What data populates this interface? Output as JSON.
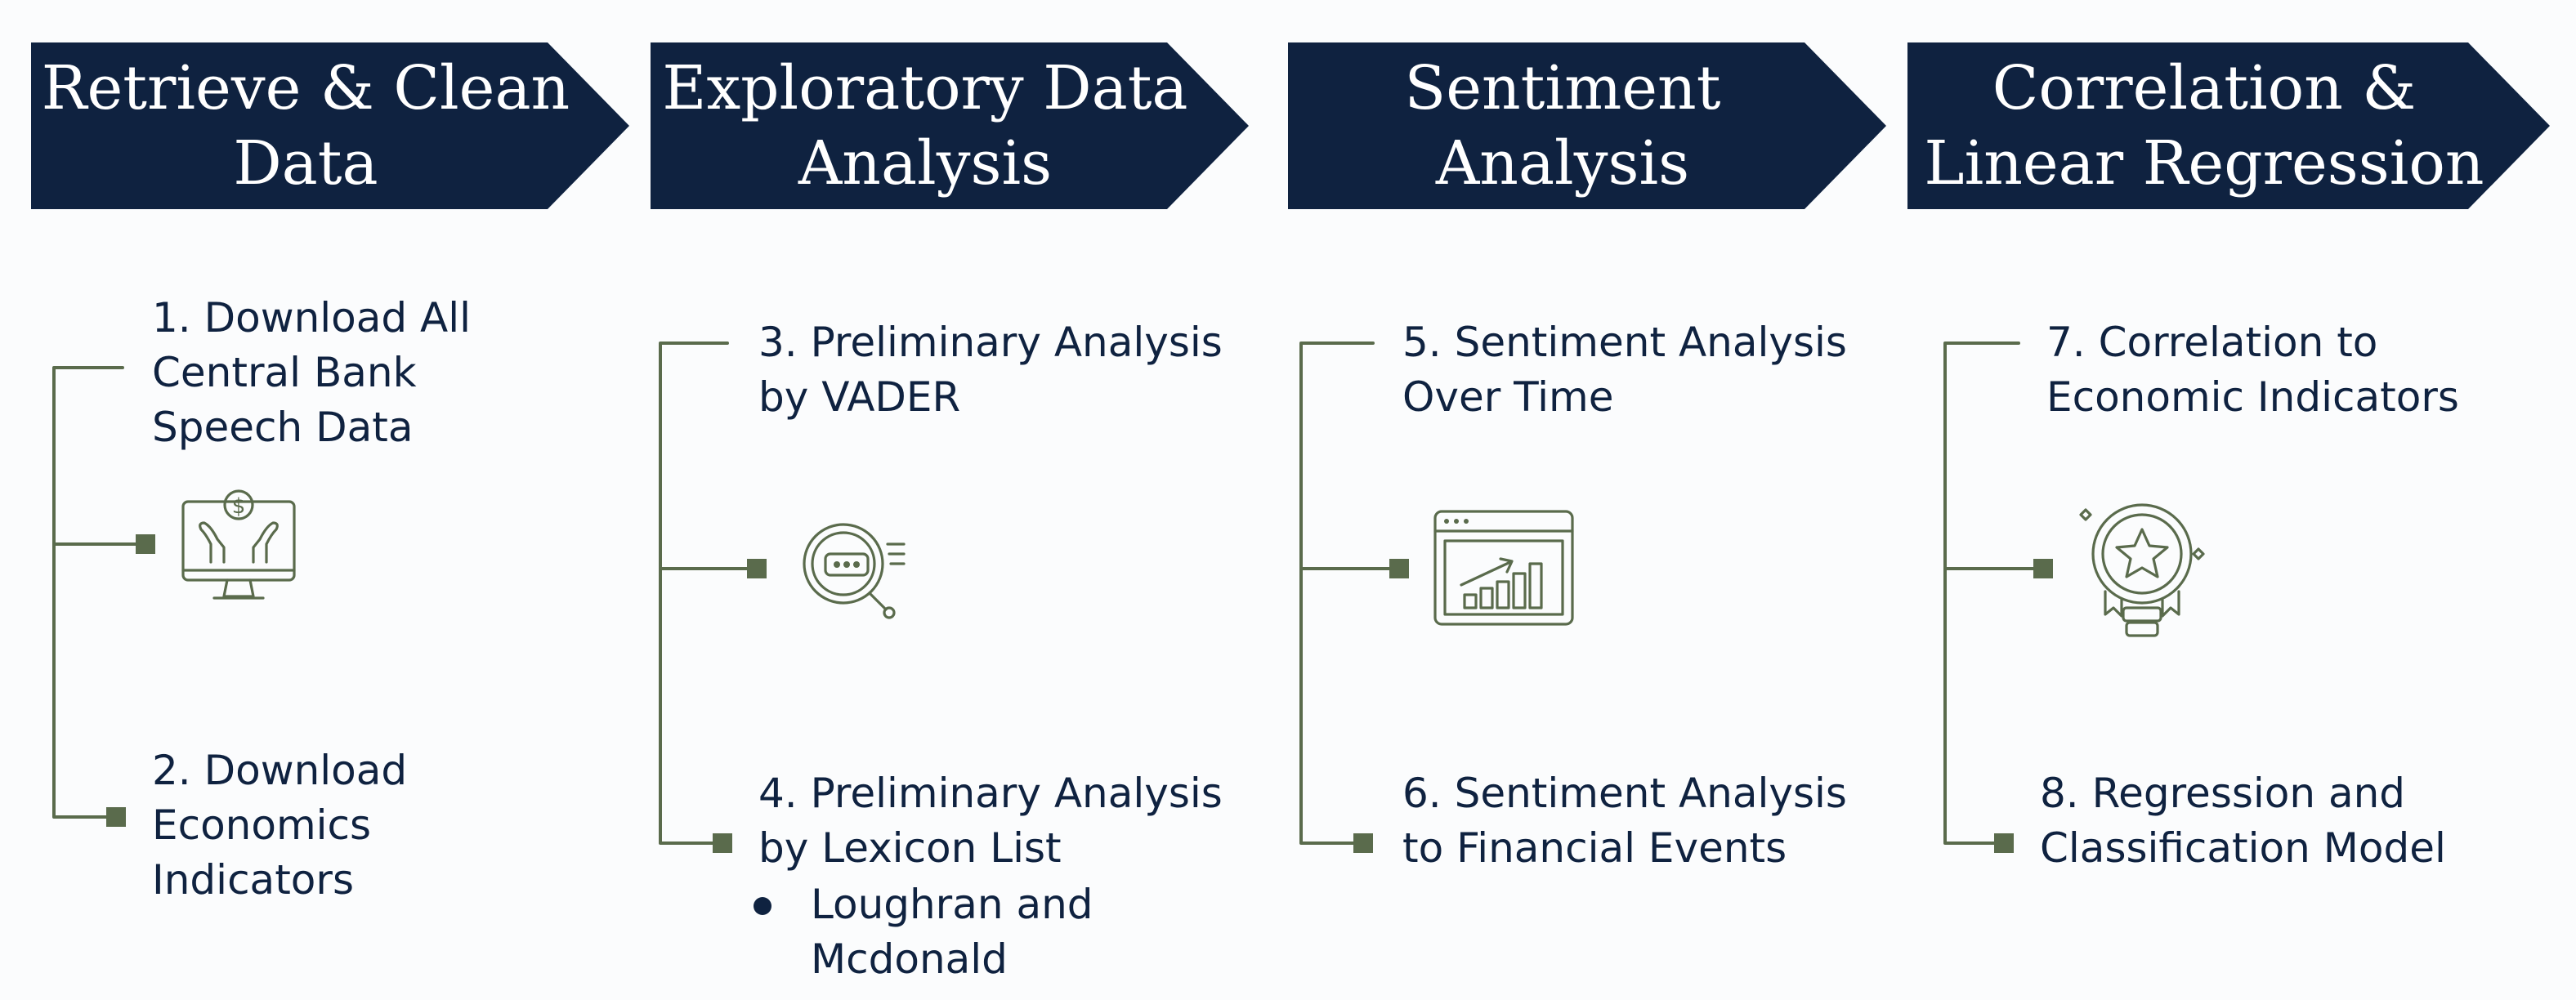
{
  "colors": {
    "header_bg": "#0f2240",
    "header_text": "#ffffff",
    "connector": "#5a6b4c",
    "text": "#0f2240",
    "background": "#fbfcfd"
  },
  "stages": [
    {
      "title": "Retrieve & Clean\nData",
      "steps": [
        {
          "text": "1. Download All\nCentral Bank\nSpeech Data"
        },
        {
          "text": "2. Download\nEconomics\nIndicators"
        }
      ],
      "icon": "money-hands-monitor-icon"
    },
    {
      "title": "Exploratory Data\nAnalysis",
      "steps": [
        {
          "text": "3. Preliminary Analysis\nby VADER"
        },
        {
          "text": "4. Preliminary Analysis\nby Lexicon List",
          "bullet": "Loughran and\nMcdonald"
        }
      ],
      "icon": "magnifier-search-icon"
    },
    {
      "title": "Sentiment\nAnalysis",
      "steps": [
        {
          "text": "5. Sentiment Analysis\nOver Time"
        },
        {
          "text": "6. Sentiment Analysis\nto Financial Events"
        }
      ],
      "icon": "growth-chart-window-icon"
    },
    {
      "title": "Correlation &\nLinear Regression",
      "steps": [
        {
          "text": "7. Correlation to\nEconomic Indicators"
        },
        {
          "text": "8. Regression and\nClassification Model"
        }
      ],
      "icon": "award-badge-star-icon"
    }
  ]
}
